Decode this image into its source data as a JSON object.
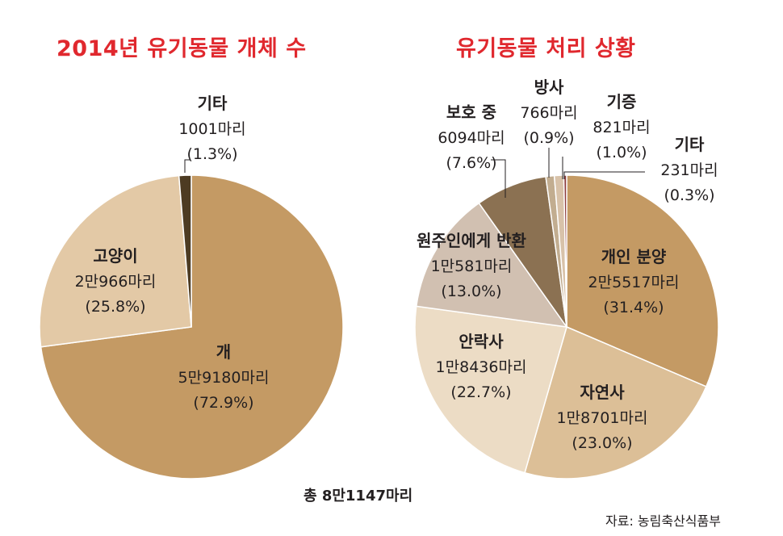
{
  "chart_data": [
    {
      "type": "pie",
      "title": "2014년 유기동물 개체 수",
      "slices": [
        {
          "name": "개",
          "count": "5만9180마리",
          "pct_label": "(72.9%)",
          "value": 72.9,
          "color": "#c49a64"
        },
        {
          "name": "고양이",
          "count": "2만966마리",
          "pct_label": "(25.8%)",
          "value": 25.8,
          "color": "#e3c9a6"
        },
        {
          "name": "기타",
          "count": "1001마리",
          "pct_label": "(1.3%)",
          "value": 1.3,
          "color": "#4d3b22"
        }
      ],
      "total": "총 8만1147마리"
    },
    {
      "type": "pie",
      "title": "유기동물 처리 상황",
      "slices": [
        {
          "name": "개인 분양",
          "count": "2만5517마리",
          "pct_label": "(31.4%)",
          "value": 31.4,
          "color": "#c49a64"
        },
        {
          "name": "자연사",
          "count": "1만8701마리",
          "pct_label": "(23.0%)",
          "value": 23.0,
          "color": "#dcbf97"
        },
        {
          "name": "안락사",
          "count": "1만8436마리",
          "pct_label": "(22.7%)",
          "value": 22.7,
          "color": "#ecdcc5"
        },
        {
          "name": "원주인에게 반환",
          "count": "1만581마리",
          "pct_label": "(13.0%)",
          "value": 13.0,
          "color": "#d1c0b1"
        },
        {
          "name": "보호 중",
          "count": "6094마리",
          "pct_label": "(7.6%)",
          "value": 7.6,
          "color": "#8b7152"
        },
        {
          "name": "방사",
          "count": "766마리",
          "pct_label": "(0.9%)",
          "value": 0.9,
          "color": "#c2ad90"
        },
        {
          "name": "기증",
          "count": "821마리",
          "pct_label": "(1.0%)",
          "value": 1.0,
          "color": "#d8c2a9"
        },
        {
          "name": "기타",
          "count": "231마리",
          "pct_label": "(0.3%)",
          "value": 0.3,
          "color": "#8e3f3f"
        }
      ]
    }
  ],
  "source": "자료: 농림축산식품부"
}
